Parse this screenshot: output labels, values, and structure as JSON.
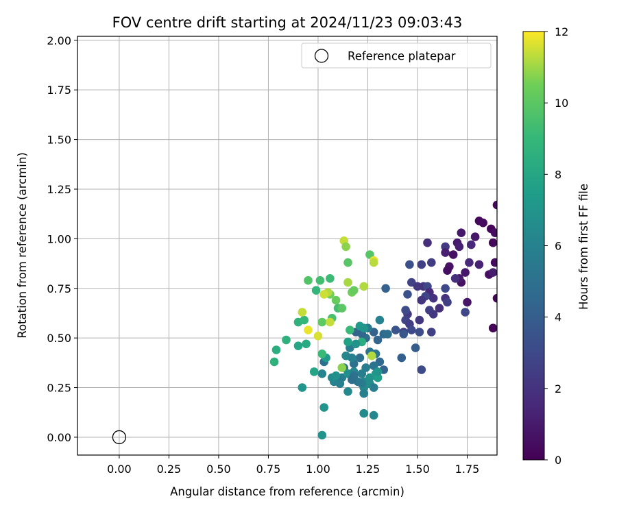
{
  "chart_data": {
    "type": "scatter",
    "title": "FOV centre drift starting at 2024/11/23 09:03:43",
    "xlabel": "Angular distance from reference (arcmin)",
    "ylabel": "Rotation from reference (arcmin)",
    "xlim": [
      -0.21,
      1.9
    ],
    "ylim": [
      -0.09,
      2.02
    ],
    "xticks": [
      "0.00",
      "0.25",
      "0.50",
      "0.75",
      "1.00",
      "1.25",
      "1.50",
      "1.75"
    ],
    "xtick_values": [
      0,
      0.25,
      0.5,
      0.75,
      1.0,
      1.25,
      1.5,
      1.75
    ],
    "yticks": [
      "0.00",
      "0.25",
      "0.50",
      "0.75",
      "1.00",
      "1.25",
      "1.50",
      "1.75",
      "2.00"
    ],
    "ytick_values": [
      0,
      0.25,
      0.5,
      0.75,
      1.0,
      1.25,
      1.5,
      1.75,
      2.0
    ],
    "grid": true,
    "legend": {
      "position": "upper right",
      "entries": [
        "Reference platepar"
      ]
    },
    "reference_point": {
      "x": 0.0,
      "y": 0.0,
      "label": "Reference platepar"
    },
    "colorbar": {
      "label": "Hours from first FF file",
      "colormap": "viridis",
      "min": 0,
      "max": 12,
      "ticks": [
        "0",
        "2",
        "4",
        "6",
        "8",
        "10",
        "12"
      ],
      "tick_values": [
        0,
        2,
        4,
        6,
        8,
        10,
        12
      ]
    },
    "points": [
      [
        1.81,
        1.09,
        0.3
      ],
      [
        1.83,
        1.08,
        0.4
      ],
      [
        1.87,
        1.05,
        0.2
      ],
      [
        1.89,
        1.03,
        0.5
      ],
      [
        1.88,
        0.98,
        0.3
      ],
      [
        1.79,
        1.01,
        0.8
      ],
      [
        1.72,
        1.03,
        0.9
      ],
      [
        1.7,
        0.98,
        1.0
      ],
      [
        1.71,
        0.96,
        1.2
      ],
      [
        1.68,
        0.92,
        0.6
      ],
      [
        1.66,
        0.86,
        0.7
      ],
      [
        1.77,
        0.97,
        1.5
      ],
      [
        1.9,
        1.17,
        0.2
      ],
      [
        1.86,
        0.82,
        0.5
      ],
      [
        1.89,
        0.88,
        0.4
      ],
      [
        1.88,
        0.83,
        1.1
      ],
      [
        1.81,
        0.87,
        1.3
      ],
      [
        1.76,
        0.88,
        1.6
      ],
      [
        1.72,
        0.78,
        0.6
      ],
      [
        1.74,
        0.83,
        0.9
      ],
      [
        1.71,
        0.8,
        1.0
      ],
      [
        1.9,
        0.7,
        0.1
      ],
      [
        1.88,
        0.55,
        0.2
      ],
      [
        1.75,
        0.68,
        0.8
      ],
      [
        1.74,
        0.63,
        2.9
      ],
      [
        1.69,
        0.8,
        1.8
      ],
      [
        1.65,
        0.84,
        0.5
      ],
      [
        1.64,
        0.96,
        2.3
      ],
      [
        1.64,
        0.93,
        1.2
      ],
      [
        1.55,
        0.98,
        1.8
      ],
      [
        1.57,
        0.88,
        2.4
      ],
      [
        1.52,
        0.87,
        2.6
      ],
      [
        1.46,
        0.87,
        3.3
      ],
      [
        1.47,
        0.78,
        2.7
      ],
      [
        1.5,
        0.76,
        2.2
      ],
      [
        1.53,
        0.76,
        2.0
      ],
      [
        1.55,
        0.76,
        2.9
      ],
      [
        1.56,
        0.73,
        1.6
      ],
      [
        1.58,
        0.7,
        1.9
      ],
      [
        1.54,
        0.71,
        2.8
      ],
      [
        1.52,
        0.69,
        2.1
      ],
      [
        1.56,
        0.64,
        2.5
      ],
      [
        1.58,
        0.62,
        2.2
      ],
      [
        1.61,
        0.65,
        1.8
      ],
      [
        1.64,
        0.7,
        2.0
      ],
      [
        1.65,
        0.68,
        2.6
      ],
      [
        1.64,
        0.75,
        3.0
      ],
      [
        1.51,
        0.59,
        2.2
      ],
      [
        1.45,
        0.62,
        2.3
      ],
      [
        1.44,
        0.64,
        3.1
      ],
      [
        1.44,
        0.59,
        2.8
      ],
      [
        1.46,
        0.57,
        2.5
      ],
      [
        1.43,
        0.53,
        2.4
      ],
      [
        1.47,
        0.54,
        3.0
      ],
      [
        1.51,
        0.53,
        3.2
      ],
      [
        1.57,
        0.53,
        2.6
      ],
      [
        1.45,
        0.72,
        3.4
      ],
      [
        1.34,
        0.75,
        4.2
      ],
      [
        1.39,
        0.54,
        3.6
      ],
      [
        1.43,
        0.52,
        3.7
      ],
      [
        1.49,
        0.45,
        3.9
      ],
      [
        1.42,
        0.4,
        4.1
      ],
      [
        1.52,
        0.34,
        3.1
      ],
      [
        1.3,
        0.49,
        4.4
      ],
      [
        1.33,
        0.52,
        4.7
      ],
      [
        1.28,
        0.53,
        4.2
      ],
      [
        1.24,
        0.5,
        4.8
      ],
      [
        1.22,
        0.52,
        4.5
      ],
      [
        1.25,
        0.55,
        5.5
      ],
      [
        1.31,
        0.59,
        6.0
      ],
      [
        1.35,
        0.52,
        4.9
      ],
      [
        1.26,
        0.43,
        5.1
      ],
      [
        1.29,
        0.42,
        5.3
      ],
      [
        1.31,
        0.38,
        4.6
      ],
      [
        1.33,
        0.34,
        4.3
      ],
      [
        1.28,
        0.36,
        5.2
      ],
      [
        1.24,
        0.35,
        5.6
      ],
      [
        1.21,
        0.4,
        4.9
      ],
      [
        1.18,
        0.37,
        5.0
      ],
      [
        1.19,
        0.53,
        4.3
      ],
      [
        1.16,
        0.45,
        5.7
      ],
      [
        1.14,
        0.41,
        6.2
      ],
      [
        1.17,
        0.4,
        5.9
      ],
      [
        1.13,
        0.35,
        5.1
      ],
      [
        1.12,
        0.3,
        5.6
      ],
      [
        1.1,
        0.28,
        5.3
      ],
      [
        1.11,
        0.27,
        5.9
      ],
      [
        1.08,
        0.28,
        6.0
      ],
      [
        1.07,
        0.3,
        6.4
      ],
      [
        1.15,
        0.32,
        6.7
      ],
      [
        1.18,
        0.33,
        6.2
      ],
      [
        1.22,
        0.32,
        5.8
      ],
      [
        1.23,
        0.28,
        6.3
      ],
      [
        1.26,
        0.3,
        6.9
      ],
      [
        1.29,
        0.32,
        7.2
      ],
      [
        1.3,
        0.3,
        7.3
      ],
      [
        1.26,
        0.27,
        6.6
      ],
      [
        1.23,
        0.25,
        6.5
      ],
      [
        1.23,
        0.22,
        5.9
      ],
      [
        1.28,
        0.25,
        5.7
      ],
      [
        1.22,
        0.27,
        5.6
      ],
      [
        1.2,
        0.28,
        5.4
      ],
      [
        1.18,
        0.31,
        5.1
      ],
      [
        1.17,
        0.29,
        4.9
      ],
      [
        1.09,
        0.31,
        6.8
      ],
      [
        1.02,
        0.32,
        6.1
      ],
      [
        1.03,
        0.38,
        5.0
      ],
      [
        1.04,
        0.4,
        7.3
      ],
      [
        1.02,
        0.42,
        9.1
      ],
      [
        1.15,
        0.23,
        6.4
      ],
      [
        1.22,
        0.48,
        8.4
      ],
      [
        1.19,
        0.47,
        6.9
      ],
      [
        1.15,
        0.48,
        7.7
      ],
      [
        1.21,
        0.56,
        7.3
      ],
      [
        1.23,
        0.55,
        7.0
      ],
      [
        1.16,
        0.54,
        9.1
      ],
      [
        1.12,
        0.35,
        10.8
      ],
      [
        1.27,
        0.41,
        11.2
      ],
      [
        1.3,
        0.3,
        7.5
      ],
      [
        1.3,
        0.33,
        7.0
      ],
      [
        1.23,
        0.12,
        6.5
      ],
      [
        1.28,
        0.11,
        6.2
      ],
      [
        1.02,
        0.01,
        6.9
      ],
      [
        1.03,
        0.15,
        7.0
      ],
      [
        0.92,
        0.25,
        7.0
      ],
      [
        0.98,
        0.33,
        7.9
      ],
      [
        0.78,
        0.38,
        8.6
      ],
      [
        0.79,
        0.44,
        8.4
      ],
      [
        0.84,
        0.49,
        8.6
      ],
      [
        0.9,
        0.46,
        8.0
      ],
      [
        0.94,
        0.47,
        8.2
      ],
      [
        0.95,
        0.54,
        11.8
      ],
      [
        0.9,
        0.58,
        8.6
      ],
      [
        0.93,
        0.59,
        8.9
      ],
      [
        0.92,
        0.63,
        11.4
      ],
      [
        1.0,
        0.51,
        11.6
      ],
      [
        1.02,
        0.58,
        10.1
      ],
      [
        1.07,
        0.6,
        9.6
      ],
      [
        1.06,
        0.58,
        11.4
      ],
      [
        1.1,
        0.65,
        9.4
      ],
      [
        1.12,
        0.65,
        10.0
      ],
      [
        1.09,
        0.69,
        10.3
      ],
      [
        1.06,
        0.72,
        10.5
      ],
      [
        1.05,
        0.73,
        11.2
      ],
      [
        1.03,
        0.72,
        11.5
      ],
      [
        0.99,
        0.74,
        8.9
      ],
      [
        1.01,
        0.79,
        9.4
      ],
      [
        1.06,
        0.8,
        9.2
      ],
      [
        0.95,
        0.79,
        9.8
      ],
      [
        1.13,
        0.99,
        11.4
      ],
      [
        1.14,
        0.96,
        10.8
      ],
      [
        1.15,
        0.88,
        9.9
      ],
      [
        1.15,
        0.78,
        11.1
      ],
      [
        1.17,
        0.73,
        10.5
      ],
      [
        1.18,
        0.74,
        10.3
      ],
      [
        1.23,
        0.76,
        11.2
      ],
      [
        1.26,
        0.92,
        9.9
      ],
      [
        1.28,
        0.89,
        11.8
      ],
      [
        1.28,
        0.88,
        11.3
      ]
    ]
  }
}
